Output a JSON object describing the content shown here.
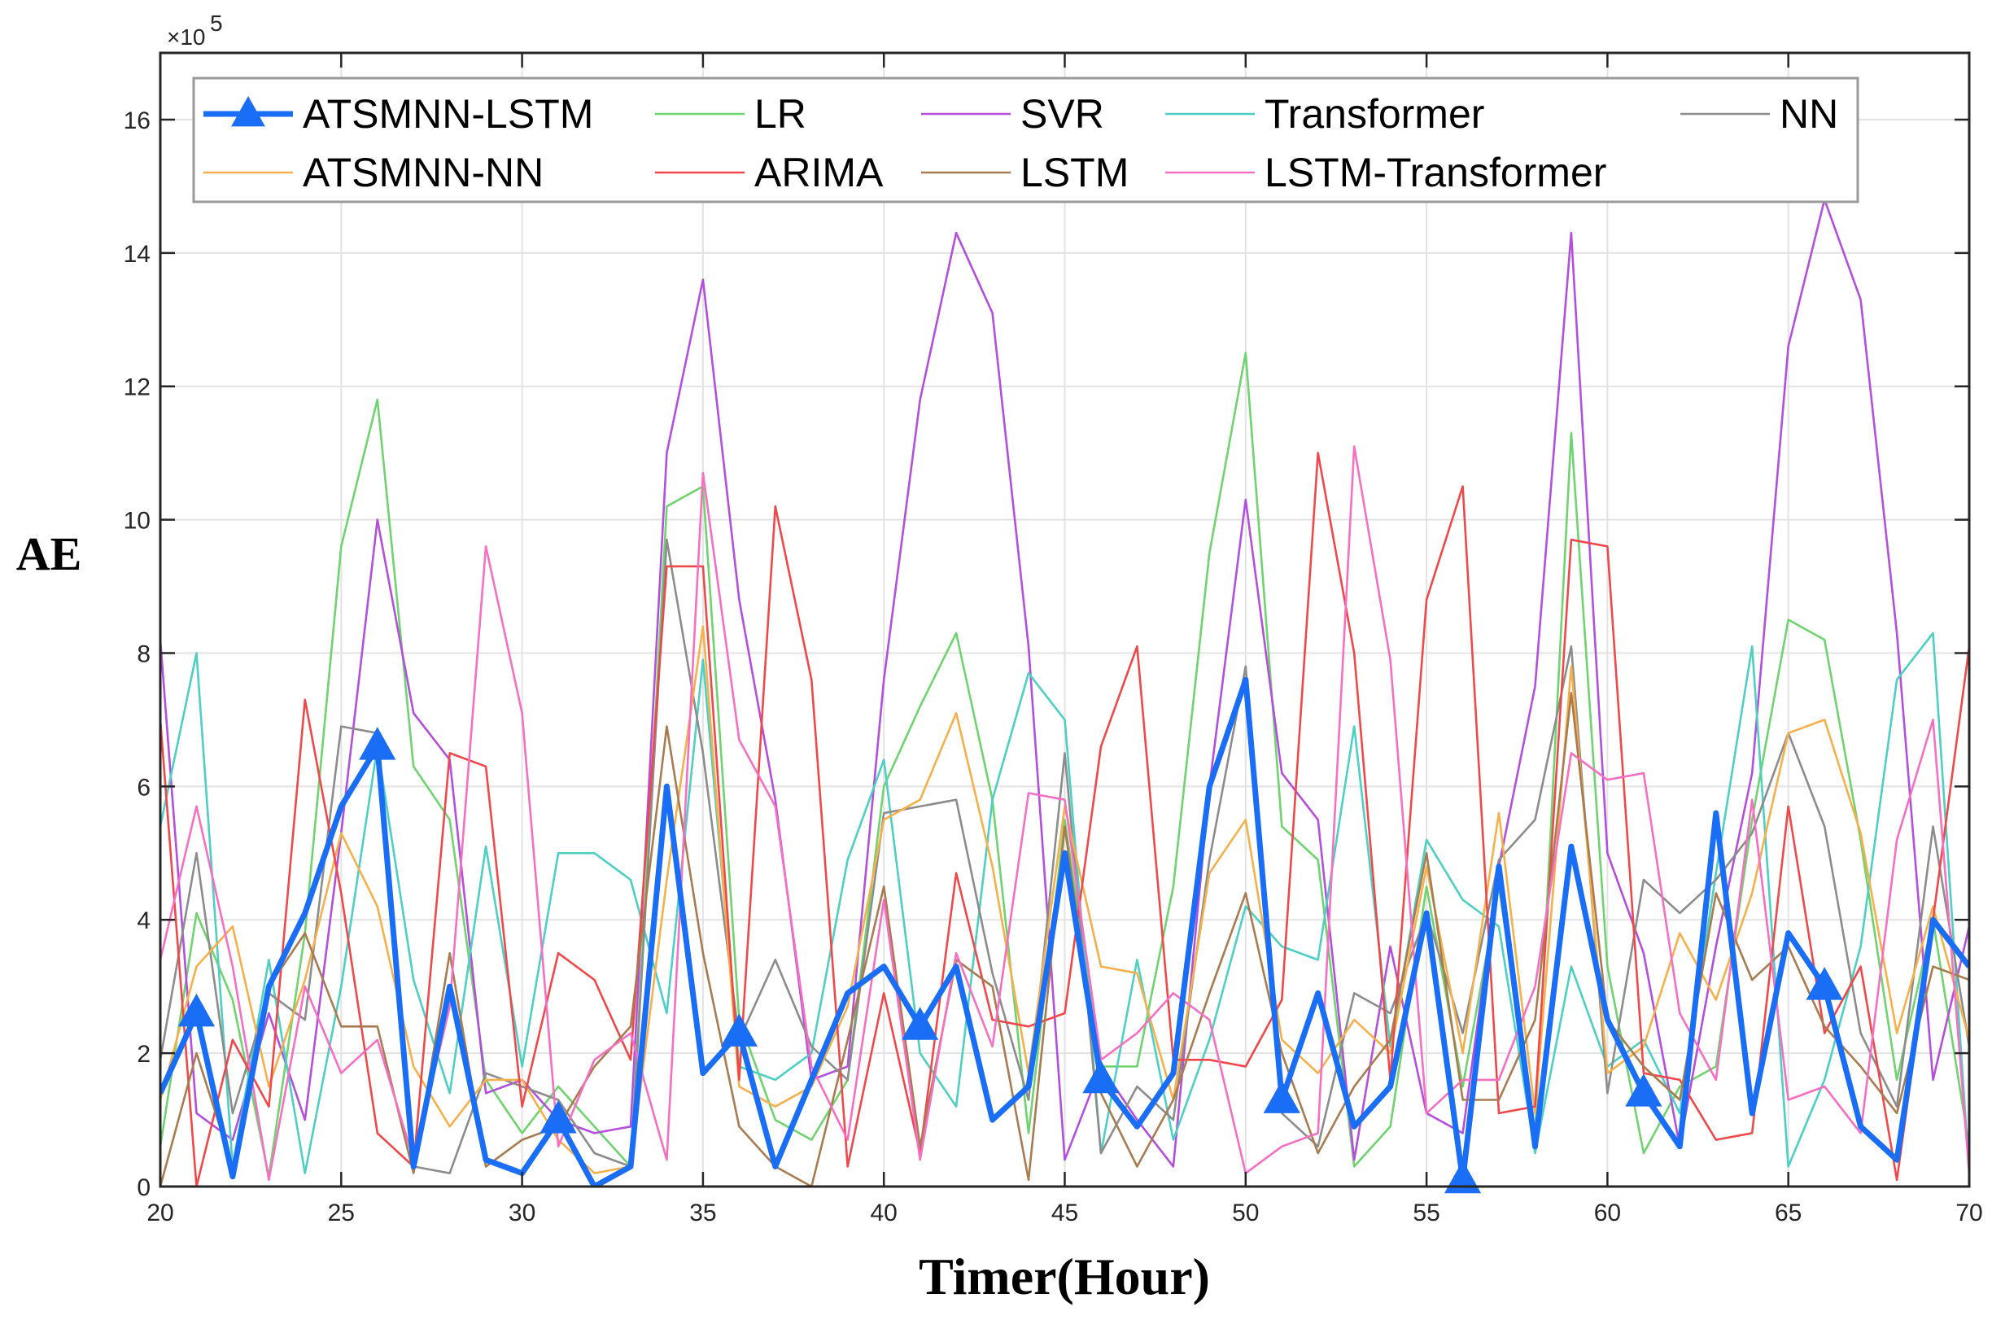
{
  "chart_data": {
    "type": "line",
    "title": "",
    "xlabel": "Timer(Hour)",
    "ylabel": "AE",
    "xlim": [
      20,
      70
    ],
    "ylim": [
      0,
      17
    ],
    "y_scale_multiplier": "×10^5",
    "y_exponent_text": "5",
    "grid": true,
    "legend_position": "top",
    "x_ticks": [
      20,
      25,
      30,
      35,
      40,
      45,
      50,
      55,
      60,
      65,
      70
    ],
    "y_ticks": [
      0,
      2,
      4,
      6,
      8,
      10,
      12,
      14,
      16
    ],
    "x": [
      20,
      21,
      22,
      23,
      24,
      25,
      26,
      27,
      28,
      29,
      30,
      31,
      32,
      33,
      34,
      35,
      36,
      37,
      38,
      39,
      40,
      41,
      42,
      43,
      44,
      45,
      46,
      47,
      48,
      49,
      50,
      51,
      52,
      53,
      54,
      55,
      56,
      57,
      58,
      59,
      60,
      61,
      62,
      63,
      64,
      65,
      66,
      67,
      68,
      69,
      70
    ],
    "series": [
      {
        "name": "LR",
        "color": "#6fd36f",
        "width": 2.6,
        "values": [
          0.6,
          4.1,
          2.8,
          0.15,
          3.8,
          9.6,
          11.8,
          6.3,
          5.5,
          1.6,
          0.8,
          1.5,
          0.9,
          0.3,
          10.2,
          10.5,
          2.5,
          1.0,
          0.7,
          1.6,
          6.0,
          7.2,
          8.3,
          5.8,
          0.8,
          5.5,
          1.8,
          1.8,
          4.5,
          9.5,
          12.5,
          5.4,
          4.9,
          0.3,
          0.9,
          4.5,
          1.5,
          4.5,
          0.8,
          11.3,
          3.3,
          0.5,
          1.5,
          1.8,
          5.5,
          8.5,
          8.2,
          5.2,
          1.6,
          4.0,
          0.6
        ]
      },
      {
        "name": "SVR",
        "color": "#b34fdc",
        "width": 2.6,
        "values": [
          8.2,
          1.1,
          0.7,
          2.6,
          1.0,
          5.3,
          10.0,
          7.1,
          6.4,
          1.4,
          1.6,
          1.0,
          0.8,
          0.9,
          11.0,
          13.6,
          8.8,
          5.8,
          1.6,
          1.8,
          7.6,
          11.8,
          14.3,
          13.1,
          8.1,
          0.4,
          1.8,
          1.0,
          0.3,
          6.0,
          10.3,
          6.2,
          5.5,
          0.4,
          3.6,
          1.1,
          0.8,
          4.8,
          7.5,
          14.3,
          5.0,
          3.5,
          0.6,
          3.6,
          6.2,
          12.6,
          14.8,
          13.3,
          8.3,
          1.6,
          3.9
        ]
      },
      {
        "name": "Transformer",
        "color": "#4ecfc4",
        "width": 2.6,
        "values": [
          5.4,
          8.0,
          0.3,
          3.4,
          0.2,
          3.0,
          6.6,
          3.1,
          1.4,
          5.1,
          1.8,
          5.0,
          5.0,
          4.6,
          2.6,
          7.9,
          1.8,
          1.6,
          2.0,
          4.9,
          6.4,
          2.0,
          1.2,
          5.8,
          7.7,
          7.0,
          0.5,
          3.4,
          0.7,
          2.2,
          4.2,
          3.6,
          3.4,
          6.9,
          2.1,
          5.2,
          4.3,
          3.9,
          0.5,
          3.3,
          1.8,
          2.2,
          1.1,
          4.7,
          8.1,
          0.3,
          1.6,
          3.6,
          7.6,
          8.3,
          0.2
        ]
      },
      {
        "name": "NN",
        "color": "#8c8c8c",
        "width": 2.6,
        "values": [
          1.9,
          5.0,
          1.1,
          2.9,
          2.5,
          6.9,
          6.8,
          0.3,
          0.2,
          1.7,
          1.5,
          1.3,
          0.5,
          0.3,
          9.7,
          6.5,
          2.2,
          3.4,
          2.1,
          1.6,
          5.6,
          5.7,
          5.8,
          3.2,
          1.3,
          6.5,
          0.5,
          1.5,
          1.0,
          4.9,
          7.8,
          1.1,
          0.6,
          2.9,
          2.6,
          4.1,
          2.3,
          4.9,
          5.5,
          8.1,
          1.4,
          4.6,
          4.1,
          4.6,
          5.3,
          6.8,
          5.4,
          2.3,
          1.2,
          5.4,
          2.1
        ]
      },
      {
        "name": "ATSMNN-NN",
        "color": "#f6b04b",
        "width": 2.6,
        "values": [
          1.3,
          3.3,
          3.9,
          1.5,
          3.1,
          5.3,
          4.2,
          1.8,
          0.9,
          1.6,
          1.6,
          0.7,
          0.2,
          0.3,
          4.6,
          8.4,
          1.5,
          1.2,
          1.5,
          2.7,
          5.5,
          5.8,
          7.1,
          4.8,
          1.7,
          5.7,
          3.3,
          3.2,
          1.3,
          4.7,
          5.5,
          2.2,
          1.7,
          2.5,
          2.0,
          4.8,
          2.0,
          5.6,
          1.1,
          7.8,
          1.7,
          2.1,
          3.8,
          2.8,
          4.4,
          6.8,
          7.0,
          5.3,
          2.3,
          4.2,
          2.2
        ]
      },
      {
        "name": "ARIMA",
        "color": "#f0484a",
        "width": 2.6,
        "values": [
          7.0,
          0.0,
          2.2,
          1.2,
          7.3,
          4.4,
          0.8,
          0.3,
          6.5,
          6.3,
          1.2,
          3.5,
          3.1,
          1.9,
          9.3,
          9.3,
          1.6,
          10.2,
          7.6,
          0.3,
          2.9,
          0.5,
          4.7,
          2.5,
          2.4,
          2.6,
          6.6,
          8.1,
          1.9,
          1.9,
          1.8,
          2.8,
          11.0,
          8.0,
          1.6,
          8.8,
          10.5,
          1.1,
          1.2,
          9.7,
          9.6,
          1.7,
          1.6,
          0.7,
          0.8,
          5.7,
          2.3,
          3.3,
          0.1,
          4.0,
          8.1
        ]
      },
      {
        "name": "LSTM",
        "color": "#a87b50",
        "width": 2.6,
        "values": [
          0.0,
          2.0,
          0.3,
          3.0,
          3.8,
          2.4,
          2.4,
          0.2,
          3.5,
          0.3,
          0.7,
          0.9,
          1.8,
          2.4,
          6.9,
          3.5,
          0.9,
          0.3,
          0.0,
          2.2,
          4.5,
          0.6,
          3.4,
          3.0,
          0.1,
          5.4,
          1.4,
          0.3,
          1.3,
          2.9,
          4.4,
          2.0,
          0.5,
          1.5,
          2.2,
          5.0,
          1.3,
          1.3,
          2.5,
          7.4,
          2.5,
          1.8,
          1.3,
          4.4,
          3.1,
          3.6,
          2.4,
          1.8,
          1.1,
          3.3,
          3.1
        ]
      },
      {
        "name": "LSTM-Transformer",
        "color": "#f56fc2",
        "width": 2.6,
        "values": [
          3.4,
          5.7,
          3.3,
          0.1,
          3.0,
          1.7,
          2.2,
          0.4,
          2.7,
          9.6,
          7.1,
          0.6,
          1.9,
          2.3,
          0.4,
          10.7,
          6.7,
          5.7,
          1.8,
          0.7,
          4.3,
          0.4,
          3.5,
          2.1,
          5.9,
          5.8,
          1.9,
          2.3,
          2.9,
          2.5,
          0.2,
          0.6,
          0.8,
          11.1,
          7.9,
          1.1,
          1.6,
          1.6,
          3.0,
          6.5,
          6.1,
          6.2,
          2.6,
          1.6,
          5.8,
          1.3,
          1.5,
          0.8,
          5.2,
          7.0,
          0.2
        ]
      },
      {
        "name": "ATSMNN-LSTM",
        "color": "#1a6ef5",
        "width": 7,
        "marker": "triangle",
        "values": [
          1.4,
          2.6,
          0.15,
          3.0,
          4.1,
          5.7,
          6.6,
          0.3,
          3.0,
          0.4,
          0.2,
          1.0,
          0.0,
          0.3,
          6.0,
          1.7,
          2.3,
          0.3,
          1.6,
          2.9,
          3.3,
          2.4,
          3.3,
          1.0,
          1.5,
          5.0,
          1.6,
          0.9,
          1.7,
          6.0,
          7.6,
          1.3,
          2.9,
          0.9,
          1.5,
          4.1,
          0.1,
          4.8,
          0.6,
          5.1,
          2.5,
          1.4,
          0.6,
          5.6,
          1.1,
          3.8,
          3.0,
          0.9,
          0.4,
          4.0,
          3.3
        ],
        "marker_x": [
          21,
          26,
          31,
          36,
          41,
          46,
          51,
          56,
          61,
          66
        ]
      }
    ],
    "legend": [
      [
        "ATSMNN-LSTM",
        "LR",
        "SVR",
        "Transformer",
        "NN"
      ],
      [
        "ATSMNN-NN",
        "ARIMA",
        "LSTM",
        "LSTM-Transformer"
      ]
    ]
  }
}
